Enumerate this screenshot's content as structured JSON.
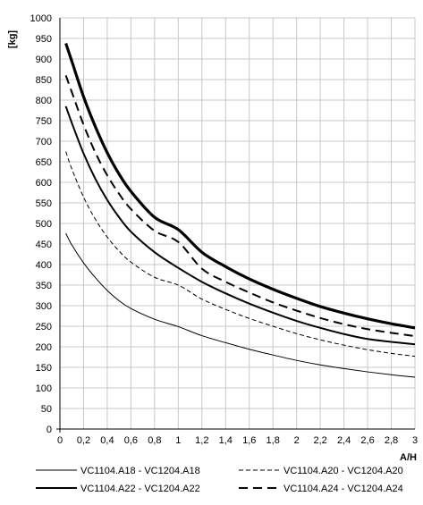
{
  "chart_data": {
    "type": "line",
    "ylabel": "[kg]",
    "xlabel": "A/H",
    "xlim": [
      0,
      3
    ],
    "ylim": [
      0,
      1000
    ],
    "grid": true,
    "legend_position": "bottom",
    "x_ticks": [
      0,
      0.2,
      0.4,
      0.6,
      0.8,
      1,
      1.2,
      1.4,
      1.6,
      1.8,
      2,
      2.2,
      2.4,
      2.6,
      2.8,
      3
    ],
    "x_tick_labels": [
      "0",
      "0,2",
      "0,4",
      "0,6",
      "0,8",
      "1",
      "1,2",
      "1,4",
      "1,6",
      "1,8",
      "2",
      "2,2",
      "2,4",
      "2,6",
      "2,8",
      "3"
    ],
    "y_ticks": [
      0,
      50,
      100,
      150,
      200,
      250,
      300,
      350,
      400,
      450,
      500,
      550,
      600,
      650,
      700,
      750,
      800,
      850,
      900,
      950,
      1000
    ],
    "y_tick_labels": [
      "0",
      "50",
      "100",
      "150",
      "200",
      "250",
      "300",
      "350",
      "400",
      "450",
      "500",
      "550",
      "600",
      "650",
      "700",
      "750",
      "800",
      "850",
      "900",
      "950",
      "1000"
    ],
    "x": [
      0.05,
      0.1,
      0.2,
      0.3,
      0.4,
      0.5,
      0.6,
      0.8,
      1.0,
      1.2,
      1.4,
      1.6,
      1.8,
      2.0,
      2.2,
      2.4,
      2.6,
      2.8,
      3.0
    ],
    "series": [
      {
        "name": "VC1104.A18 - VC1204.A18",
        "style": "thin-solid",
        "values": [
          476,
          448,
          404,
          368,
          337,
          312,
          293,
          267,
          249,
          227,
          210,
          194,
          180,
          167,
          156,
          147,
          139,
          132,
          126
        ]
      },
      {
        "name": "VC1104.A20 - VC1204.A20",
        "style": "thin-dashed",
        "values": [
          675,
          633,
          564,
          510,
          467,
          433,
          406,
          369,
          350,
          316,
          291,
          269,
          250,
          232,
          217,
          204,
          193,
          184,
          177
        ]
      },
      {
        "name": "VC1104.A22 - VC1204.A22",
        "style": "thick-solid",
        "values": [
          785,
          745,
          670,
          608,
          557,
          515,
          480,
          430,
          392,
          358,
          330,
          305,
          283,
          263,
          246,
          231,
          219,
          212,
          206
        ]
      },
      {
        "name": "VC1104.A24 - VC1204.A24",
        "style": "thick-dashed",
        "values": [
          860,
          820,
          740,
          672,
          617,
          572,
          535,
          482,
          455,
          390,
          358,
          332,
          308,
          288,
          270,
          255,
          243,
          234,
          226
        ]
      },
      {
        "name": "",
        "style": "thickest-solid",
        "values": [
          938,
          895,
          808,
          735,
          672,
          620,
          578,
          515,
          485,
          430,
          395,
          365,
          340,
          318,
          298,
          282,
          268,
          256,
          246
        ]
      }
    ]
  }
}
